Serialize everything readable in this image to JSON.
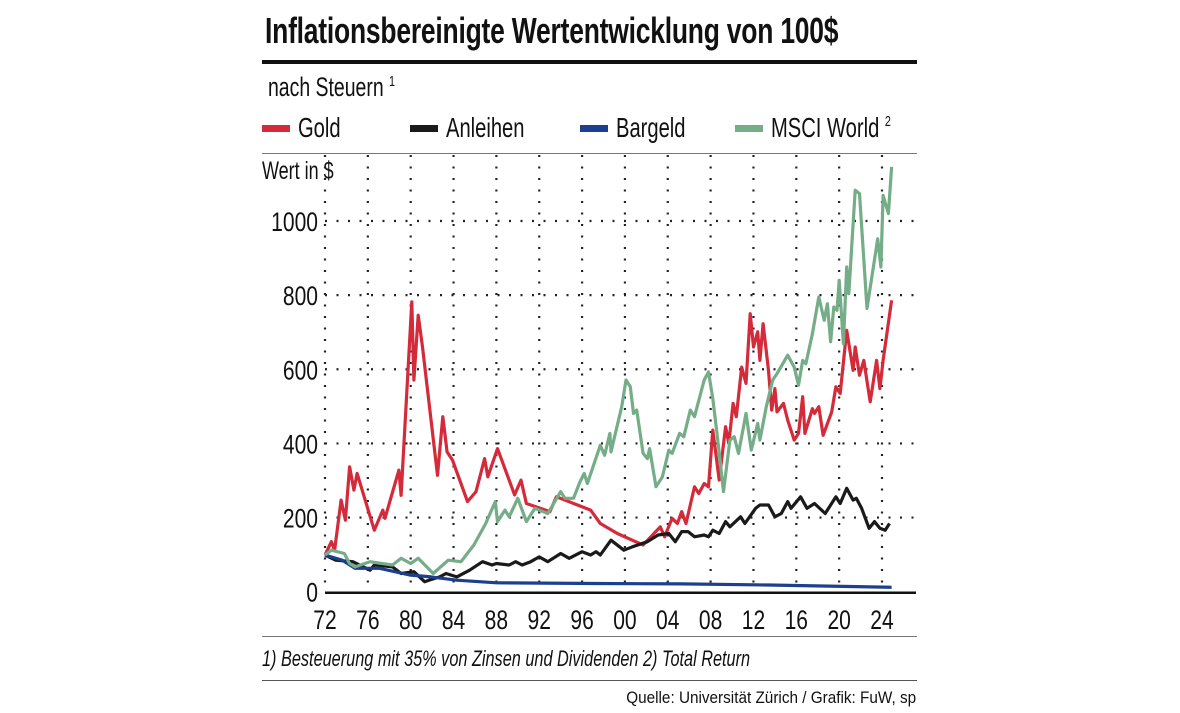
{
  "title": "Inflationsbereinigte Wertentwicklung von 100$",
  "subtitle": {
    "text": "nach Steuern",
    "sup": "1"
  },
  "footnote": "1) Besteuerung mit 35% von Zinsen und Dividenden   2) Total Return",
  "source": "Quelle: Universität Zürich / Grafik: FuW, sp",
  "chart_data": {
    "type": "line",
    "title": "Inflationsbereinigte Wertentwicklung von 100$",
    "subtitle": "nach Steuern",
    "ylabel": "Wert in $",
    "xlabel": "",
    "xlim": [
      1972,
      2027
    ],
    "ylim": [
      0,
      1150
    ],
    "grid": true,
    "grid_style": "dotted",
    "legend_placement": "top",
    "x_ticks": [
      1972,
      1976,
      1980,
      1984,
      1988,
      1992,
      1996,
      2000,
      2004,
      2008,
      2012,
      2016,
      2020,
      2024
    ],
    "x_tick_labels": [
      "72",
      "76",
      "80",
      "84",
      "88",
      "92",
      "96",
      "00",
      "04",
      "08",
      "12",
      "16",
      "20",
      "24"
    ],
    "y_ticks": [
      0,
      200,
      400,
      600,
      800,
      1000
    ],
    "y_tick_labels": [
      "0",
      "200",
      "400",
      "600",
      "800",
      "1000"
    ],
    "series": [
      {
        "name": "Gold",
        "sup": "",
        "color": "#d42a3a",
        "x": [
          1972.0,
          1972.6,
          1972.9,
          1973.5,
          1973.9,
          1974.3,
          1974.7,
          1975.0,
          1976.6,
          1977.4,
          1977.6,
          1978.9,
          1979.1,
          1980.1,
          1980.3,
          1980.7,
          1981.1,
          1982.5,
          1983.0,
          1983.4,
          1983.9,
          1985.3,
          1986.1,
          1986.9,
          1987.2,
          1988.1,
          1989.7,
          1990.3,
          1990.8,
          1993.0,
          1993.6,
          1996.8,
          1997.7,
          1999.3,
          2001.7,
          2003.3,
          2003.7,
          2004.4,
          2004.9,
          2005.3,
          2005.7,
          2006.5,
          2006.9,
          2007.4,
          2007.8,
          2008.2,
          2008.8,
          2009.4,
          2009.7,
          2010.1,
          2010.4,
          2010.9,
          2011.3,
          2011.7,
          2012.0,
          2012.4,
          2012.6,
          2012.9,
          2013.4,
          2013.7,
          2014.0,
          2014.2,
          2014.8,
          2015.2,
          2015.8,
          2016.2,
          2016.6,
          2016.8,
          2017.5,
          2017.7,
          2018.1,
          2018.5,
          2019.3,
          2019.7,
          2020.1,
          2020.7,
          2021.3,
          2021.5,
          2021.9,
          2022.3,
          2022.9,
          2023.5,
          2023.8,
          2024.1,
          2024.9
        ],
        "values": [
          99,
          135,
          112,
          247,
          193,
          337,
          274,
          319,
          166,
          220,
          198,
          328,
          260,
          782,
          571,
          746,
          660,
          314,
          472,
          377,
          355,
          243,
          270,
          359,
          310,
          386,
          261,
          301,
          238,
          216,
          256,
          220,
          184,
          157,
          126,
          175,
          148,
          198,
          184,
          216,
          184,
          283,
          265,
          292,
          283,
          436,
          301,
          445,
          400,
          508,
          472,
          606,
          562,
          750,
          660,
          701,
          624,
          723,
          597,
          490,
          548,
          485,
          508,
          463,
          409,
          427,
          526,
          427,
          494,
          481,
          499,
          422,
          485,
          553,
          535,
          705,
          597,
          660,
          584,
          624,
          512,
          624,
          548,
          624,
          786
        ]
      },
      {
        "name": "Anleihen",
        "sup": "",
        "color": "#1a1a1a",
        "x": [
          1972.0,
          1973.0,
          1974.6,
          1976.2,
          1976.6,
          1978.3,
          1979.1,
          1980.3,
          1981.3,
          1981.7,
          1982.7,
          1983.3,
          1984.3,
          1985.5,
          1986.7,
          1987.6,
          1988.0,
          1989.2,
          1989.8,
          1990.4,
          1991.2,
          1992.0,
          1992.8,
          1994.0,
          1994.8,
          1996.0,
          1996.8,
          1997.3,
          1997.7,
          1998.7,
          1999.9,
          2000.7,
          2002.1,
          2003.1,
          2004.1,
          2004.7,
          2005.3,
          2005.9,
          2006.5,
          2007.4,
          2007.8,
          2008.2,
          2008.8,
          2009.4,
          2009.8,
          2010.8,
          2011.2,
          2012.2,
          2012.6,
          2013.4,
          2014.0,
          2014.6,
          2015.2,
          2015.5,
          2016.4,
          2017.0,
          2017.7,
          2018.7,
          2019.7,
          2020.1,
          2020.7,
          2021.3,
          2021.6,
          2022.1,
          2022.8,
          2023.3,
          2023.8,
          2024.3,
          2024.7
        ],
        "values": [
          99,
          85,
          81,
          58,
          72,
          67,
          49,
          54,
          27,
          31,
          40,
          49,
          40,
          58,
          81,
          72,
          76,
          72,
          81,
          72,
          81,
          94,
          81,
          103,
          90,
          108,
          99,
          108,
          99,
          139,
          112,
          121,
          135,
          153,
          157,
          135,
          162,
          162,
          148,
          153,
          148,
          166,
          157,
          189,
          175,
          202,
          184,
          225,
          234,
          234,
          202,
          211,
          243,
          225,
          256,
          225,
          238,
          211,
          256,
          238,
          279,
          247,
          252,
          225,
          171,
          189,
          171,
          166,
          184
        ]
      },
      {
        "name": "Bargeld",
        "sup": "",
        "color": "#1c3f8f",
        "x": [
          1972.0,
          1973.6,
          1974.8,
          1977.1,
          1979.9,
          1981.9,
          1984.3,
          1988.0,
          1997.3,
          2005.3,
          2013.4,
          2024.9
        ],
        "values": [
          99,
          85,
          63,
          63,
          45,
          40,
          31,
          24,
          22,
          21,
          18,
          12
        ]
      },
      {
        "name": "MSCI World",
        "sup": "2",
        "color": "#74ad87",
        "x": [
          1972.0,
          1972.6,
          1973.8,
          1974.3,
          1974.8,
          1976.2,
          1978.3,
          1979.1,
          1980.0,
          1980.7,
          1982.1,
          1983.5,
          1984.7,
          1985.9,
          1987.0,
          1987.9,
          1988.1,
          1988.8,
          1989.2,
          1990.0,
          1990.8,
          1991.6,
          1992.8,
          1994.0,
          1994.4,
          1995.2,
          1995.8,
          1996.2,
          1996.5,
          1997.7,
          1998.1,
          1998.6,
          1998.7,
          1999.7,
          2000.1,
          2000.5,
          2000.8,
          2001.1,
          2001.7,
          2002.1,
          2002.3,
          2002.9,
          2003.5,
          2004.1,
          2004.4,
          2005.1,
          2005.5,
          2006.1,
          2006.5,
          2007.4,
          2007.8,
          2008.2,
          2008.6,
          2009.2,
          2009.8,
          2010.2,
          2010.6,
          2011.3,
          2011.8,
          2012.4,
          2012.6,
          2013.2,
          2013.8,
          2014.2,
          2015.2,
          2015.8,
          2016.2,
          2016.6,
          2016.9,
          2017.5,
          2018.1,
          2018.6,
          2018.9,
          2019.2,
          2019.5,
          2019.8,
          2020.0,
          2020.4,
          2020.7,
          2020.9,
          2021.5,
          2021.9,
          2022.6,
          2023.6,
          2023.9,
          2024.1,
          2024.6,
          2024.9
        ],
        "values": [
          99,
          112,
          103,
          76,
          67,
          81,
          72,
          90,
          76,
          90,
          49,
          85,
          81,
          126,
          184,
          243,
          189,
          220,
          202,
          252,
          189,
          225,
          211,
          270,
          252,
          252,
          296,
          319,
          292,
          395,
          368,
          427,
          377,
          499,
          571,
          553,
          481,
          490,
          373,
          359,
          386,
          283,
          310,
          382,
          373,
          427,
          418,
          490,
          472,
          571,
          593,
          521,
          427,
          270,
          409,
          418,
          373,
          481,
          382,
          454,
          409,
          499,
          571,
          588,
          638,
          606,
          557,
          624,
          615,
          696,
          795,
          732,
          777,
          674,
          768,
          759,
          840,
          669,
          876,
          804,
          1083,
          1074,
          764,
          952,
          876,
          1069,
          1020,
          1146
        ]
      }
    ]
  }
}
